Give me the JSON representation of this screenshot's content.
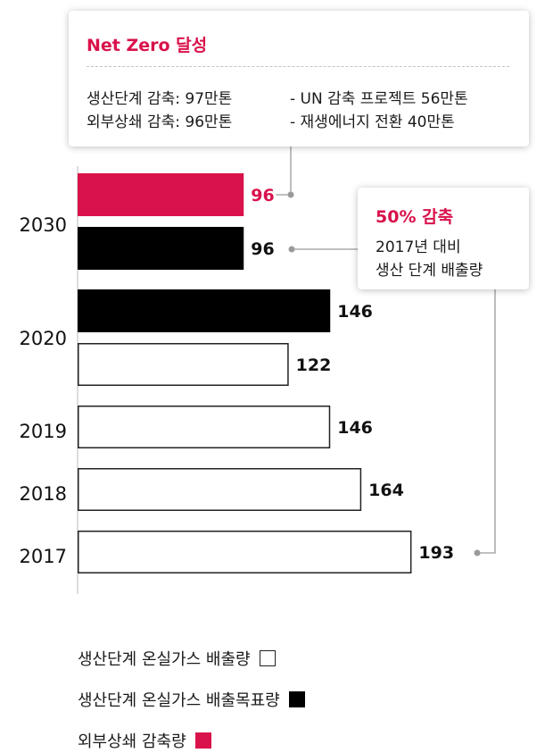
{
  "colors": {
    "accent": "#D9124B",
    "target": "#000000",
    "production": "#FFFFFF",
    "outline": "#222222",
    "axis": "#BBBBBB",
    "leader": "#9A9A9A"
  },
  "callout_top": {
    "title": "Net Zero 달성",
    "lines": [
      "생산단계 감축: 97만톤",
      "외부상쇄 감축: 96만톤",
      "- UN 감축 프로젝트 56만톤",
      "- 재생에너지 전환 40만톤"
    ]
  },
  "callout_right": {
    "title": "50% 감축",
    "lines": [
      "2017년 대비",
      "생산 단계 배출량"
    ]
  },
  "legend": [
    {
      "label": "생산단계 온실가스 배출량",
      "series": "production"
    },
    {
      "label": "생산단계 온실가스 배출목표량",
      "series": "target"
    },
    {
      "label": "외부상쇄 감축량",
      "series": "offset"
    }
  ],
  "chart_data": {
    "type": "bar",
    "orientation": "horizontal",
    "categories": [
      "2030",
      "2020",
      "2019",
      "2018",
      "2017"
    ],
    "series": [
      {
        "name": "외부상쇄 감축량",
        "key": "offset",
        "values": [
          96,
          null,
          null,
          null,
          null
        ]
      },
      {
        "name": "생산단계 온실가스 배출목표량",
        "key": "target",
        "values": [
          96,
          146,
          null,
          null,
          null
        ]
      },
      {
        "name": "생산단계 온실가스 배출량",
        "key": "production",
        "values": [
          null,
          122,
          146,
          164,
          193
        ]
      }
    ],
    "value_labels": [
      "96",
      "96",
      "146",
      "122",
      "146",
      "164",
      "193"
    ],
    "xlim": [
      0,
      200
    ],
    "grid": false,
    "legend_position": "bottom-left"
  }
}
